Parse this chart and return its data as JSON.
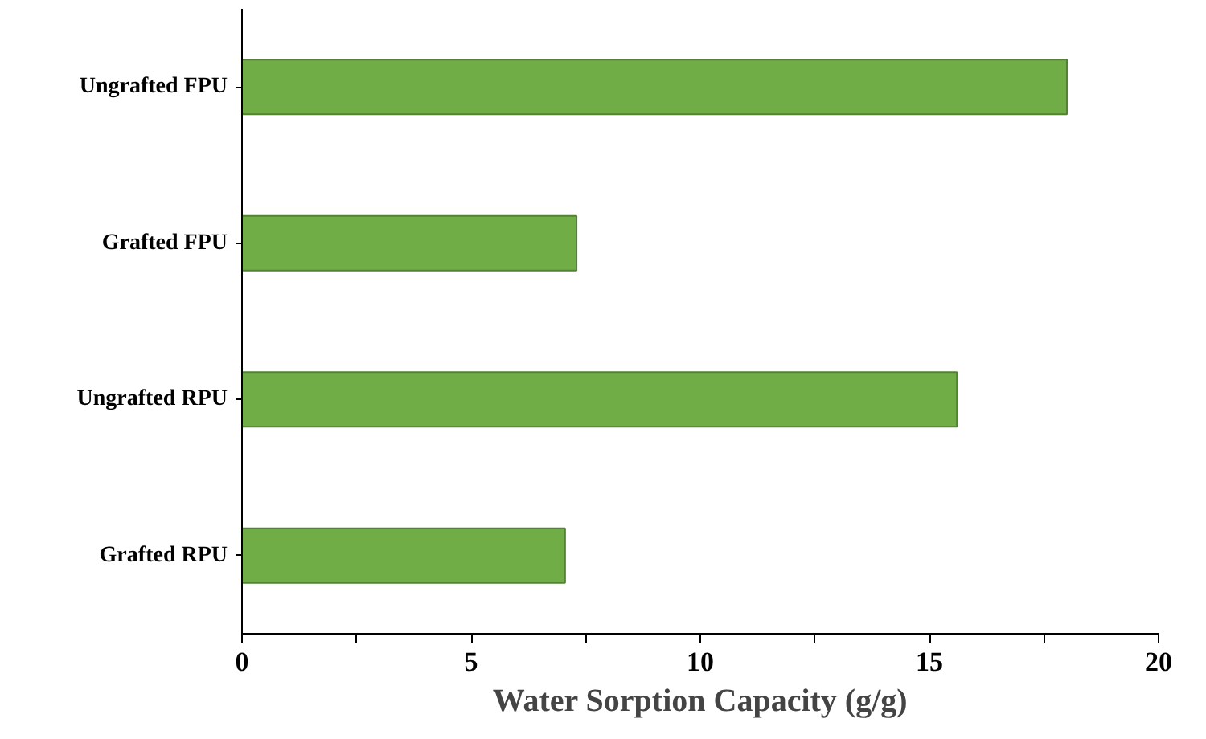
{
  "chart_data": {
    "type": "bar",
    "orientation": "horizontal",
    "xlabel": "Water Sorption Capacity (g/g)",
    "categories": [
      "Ungrafted FPU",
      "Grafted FPU",
      "Ungrafted RPU",
      "Grafted RPU"
    ],
    "values": [
      18.0,
      7.3,
      15.6,
      7.05
    ],
    "color": "#70ad47",
    "xlim": [
      0,
      20
    ],
    "xticks": [
      0,
      {
        "value": 2.5,
        "label": null
      },
      5,
      {
        "value": 7.5,
        "label": null
      },
      10,
      {
        "value": 12.5,
        "label": null
      },
      15,
      {
        "value": 17.5,
        "label": null
      },
      20
    ],
    "grid": false
  }
}
